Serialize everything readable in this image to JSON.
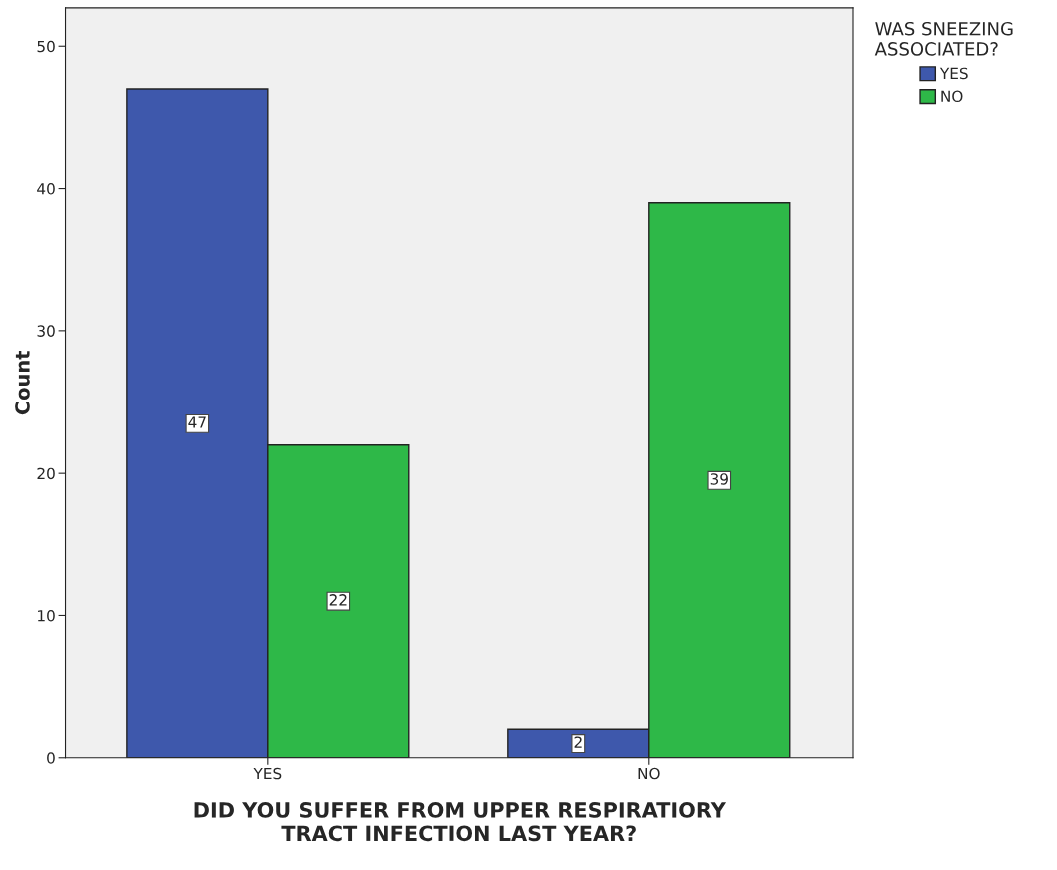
{
  "chart_data": {
    "type": "bar",
    "xlabel": "DID YOU SUFFER FROM UPPER RESPIRATIORY\nTRACT INFECTION LAST YEAR?",
    "ylabel": "Count",
    "legend_title": "WAS SNEEZING\nASSOCIATED?",
    "categories": [
      "YES",
      "NO"
    ],
    "series": [
      {
        "name": "YES",
        "color": "#3e58ac",
        "values": [
          47,
          2
        ]
      },
      {
        "name": "NO",
        "color": "#2eb848",
        "values": [
          22,
          39
        ]
      }
    ],
    "ylim": [
      0,
      52.7
    ],
    "yticks": [
      0,
      10,
      20,
      30,
      40,
      50
    ],
    "grid": false,
    "legend": "top right",
    "data_labels": true
  }
}
